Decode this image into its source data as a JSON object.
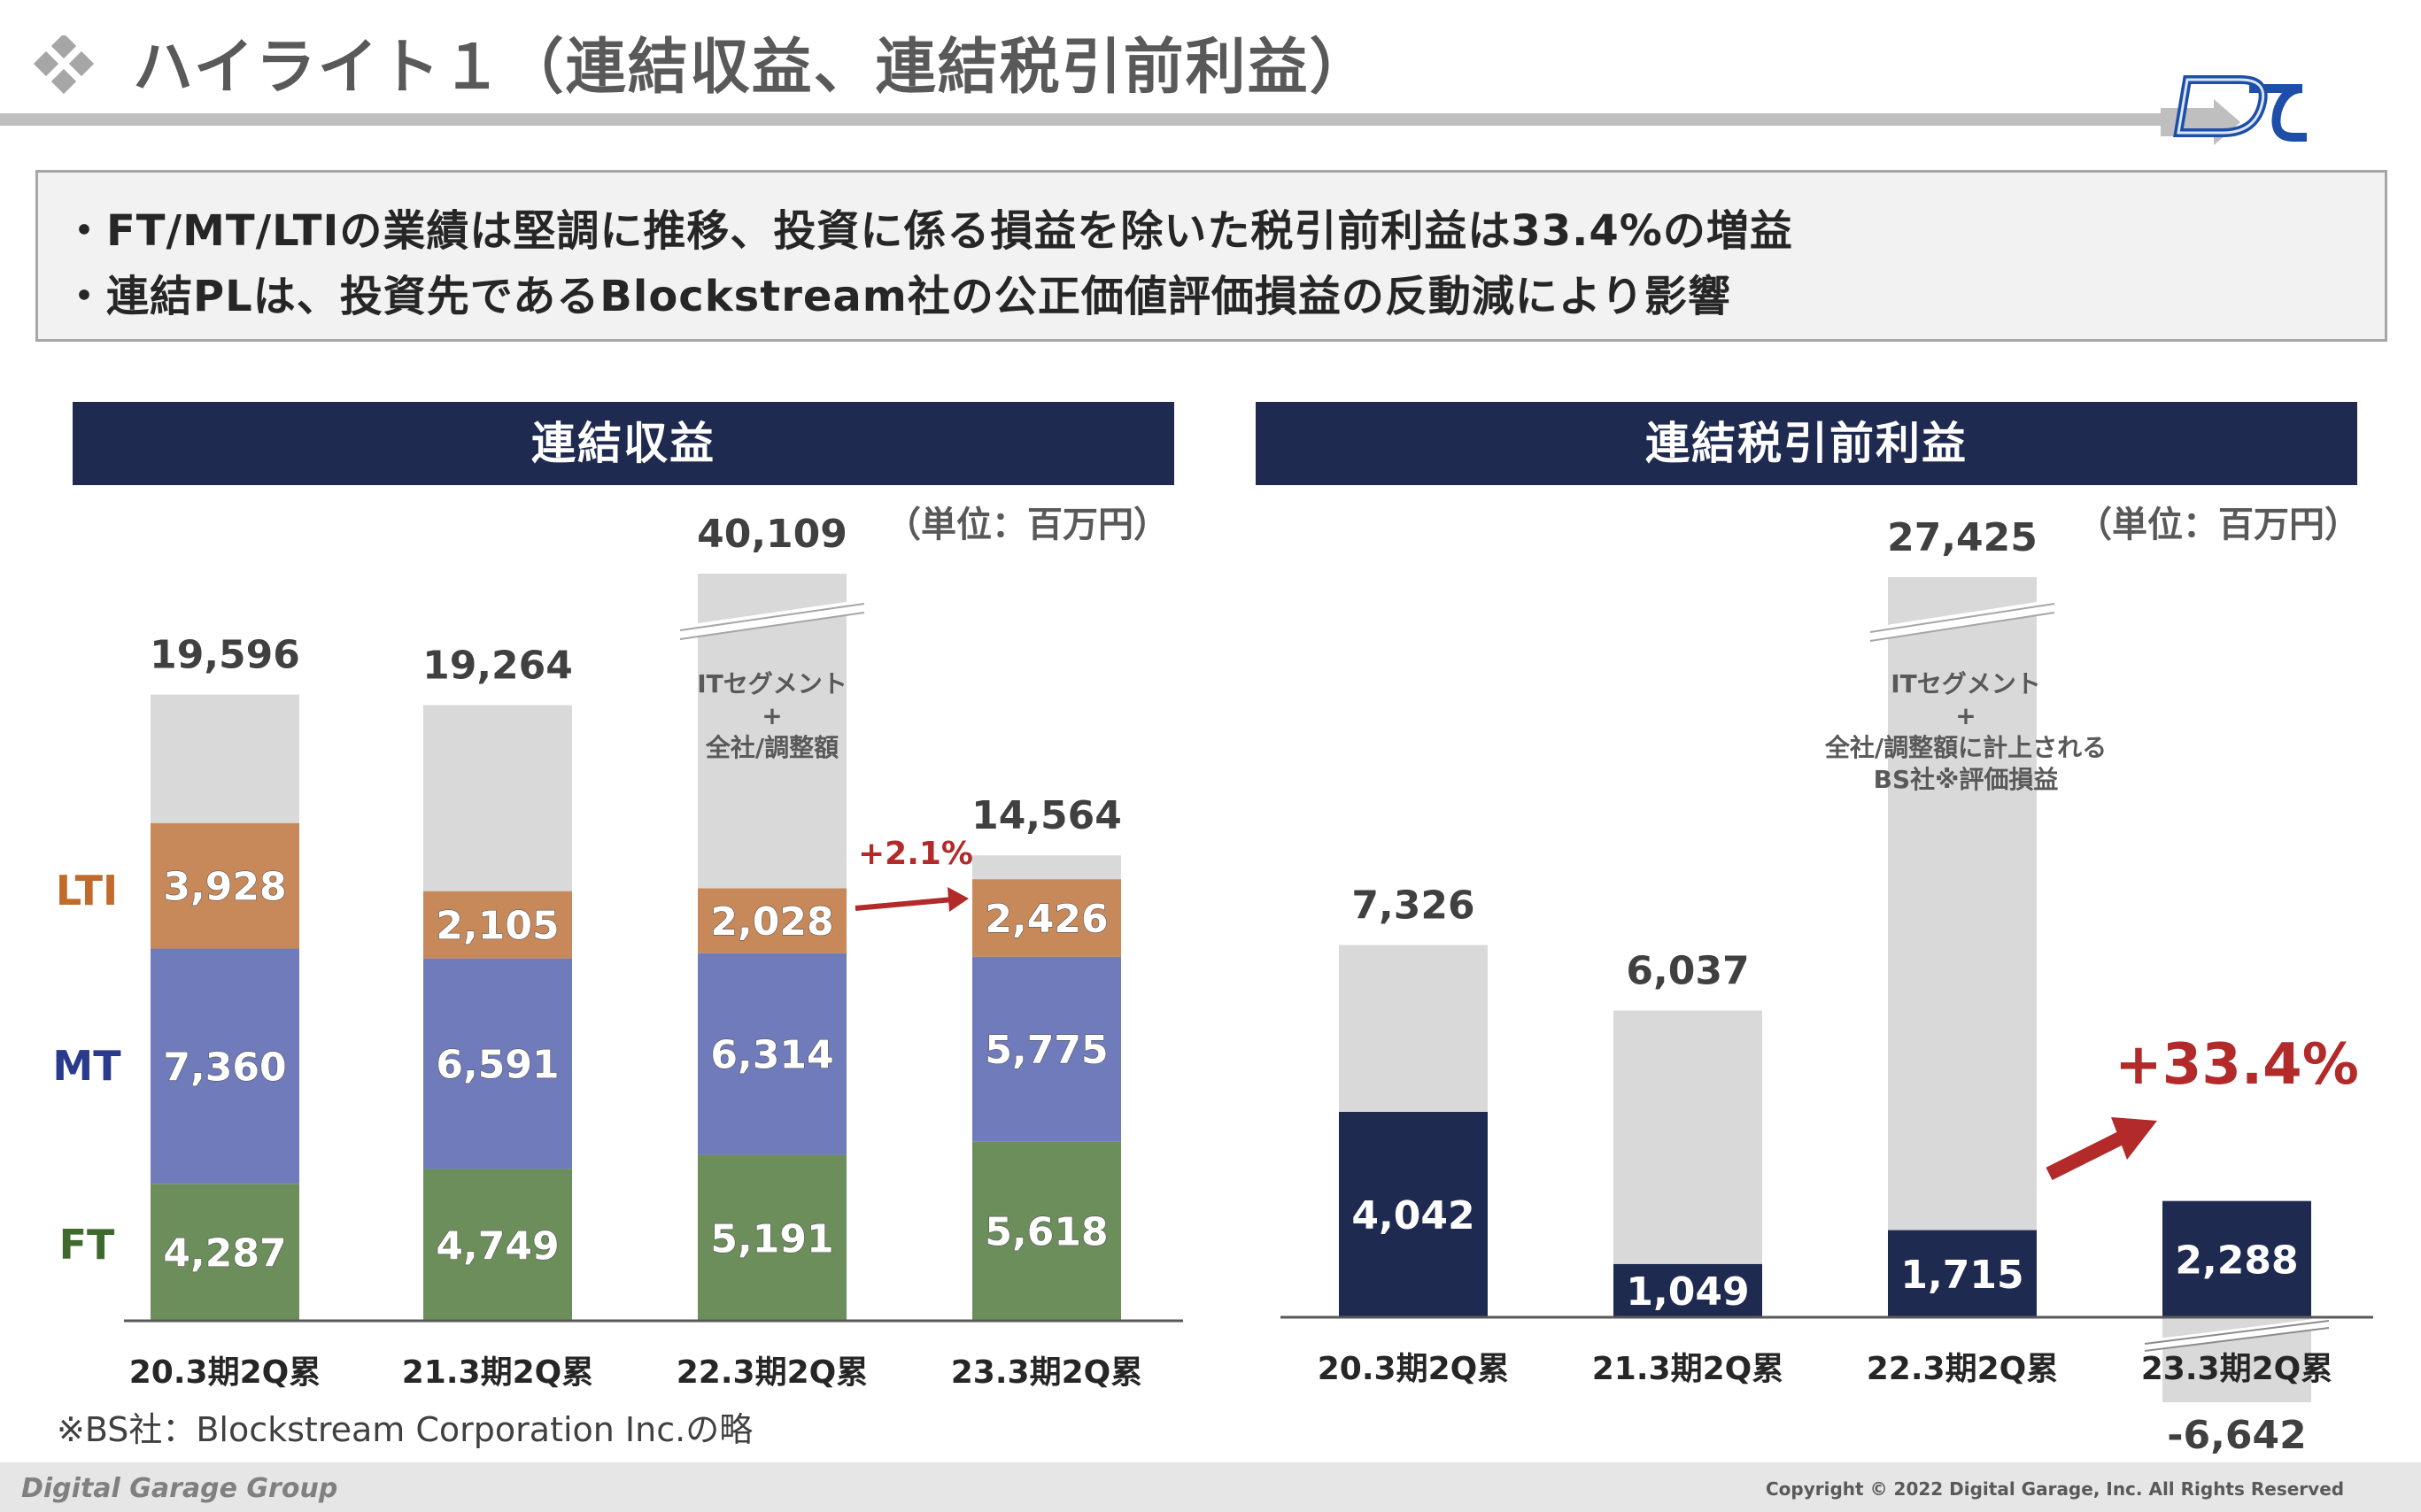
{
  "header": {
    "title": "ハイライト１（連結収益、連結税引前利益）"
  },
  "summary": {
    "bullet_1": "・FT/MT/LTIの業績は堅調に推移、投資に係る損益を除いた税引前利益は33.4%の増益",
    "bullet_2": "・連結PLは、投資先であるBlockstream社の公正価値評価損益の反動減により影響"
  },
  "left_panel": {
    "title": "連結収益",
    "unit": "（単位：百万円）"
  },
  "right_panel": {
    "title": "連結税引前利益",
    "unit": "（単位：百万円）"
  },
  "footnote": "※BS社：Blockstream Corporation Inc.の略",
  "footer": {
    "brand": "Digital Garage Group",
    "copyright": "Copyright © 2022 Digital Garage, Inc. All Rights Reserved"
  },
  "colors": {
    "navy": "#1f2a50",
    "ft": "#6b8e5a",
    "mt": "#6f7bbb",
    "lti": "#c8895a",
    "other": "#d9d9d9",
    "accent_red": "#b22a2a"
  },
  "chart_data": [
    {
      "type": "bar",
      "title": "連結収益",
      "stacked": true,
      "categories": [
        "20.3期2Q累",
        "21.3期2Q累",
        "22.3期2Q累",
        "23.3期2Q累"
      ],
      "series": [
        {
          "name": "FT",
          "values": [
            4287,
            4749,
            5191,
            5618
          ],
          "labels": [
            "4,287",
            "4,749",
            "5,191",
            "5,618"
          ],
          "color": "#6b8e5a"
        },
        {
          "name": "MT",
          "values": [
            7360,
            6591,
            6314,
            5775
          ],
          "labels": [
            "7,360",
            "6,591",
            "6,314",
            "5,775"
          ],
          "color": "#6f7bbb"
        },
        {
          "name": "LTI",
          "values": [
            3928,
            2105,
            2028,
            2426
          ],
          "labels": [
            "3,928",
            "2,105",
            "2,028",
            "2,426"
          ],
          "color": "#c8895a"
        },
        {
          "values": [
            4021,
            5819,
            26576,
            745
          ],
          "color": "#d9d9d9"
        }
      ],
      "totals": [
        19596,
        19264,
        40109,
        14564
      ],
      "total_labels": [
        "19,596",
        "19,264",
        "40,109",
        "14,564"
      ],
      "broken_bar_index": 2,
      "annotation_other": [
        "ITセグメント",
        "+",
        "全社/調整額"
      ],
      "growth_label": "+2.1%",
      "legend_labels": {
        "FT": "FT",
        "MT": "MT",
        "LTI": "LTI"
      }
    },
    {
      "type": "bar",
      "title": "連結税引前利益",
      "stacked": true,
      "categories": [
        "20.3期2Q累",
        "21.3期2Q累",
        "22.3期2Q累",
        "23.3期2Q累"
      ],
      "series": [
        {
          "values": [
            4042,
            1049,
            1715,
            2288
          ],
          "labels": [
            "4,042",
            "1,049",
            "1,715",
            "2,288"
          ],
          "color": "#1f2a50"
        },
        {
          "values": [
            3284,
            4988,
            25710,
            -8930
          ],
          "color": "#d9d9d9"
        }
      ],
      "totals": [
        7326,
        6037,
        27425,
        -6642
      ],
      "total_labels": [
        "7,326",
        "6,037",
        "27,425",
        "-6,642"
      ],
      "broken_bar_index": 2,
      "annotation_other": [
        "ITセグメント",
        "+",
        "全社/調整額に計上される",
        "BS社※評価損益"
      ],
      "growth_label": "+33.4%"
    }
  ]
}
